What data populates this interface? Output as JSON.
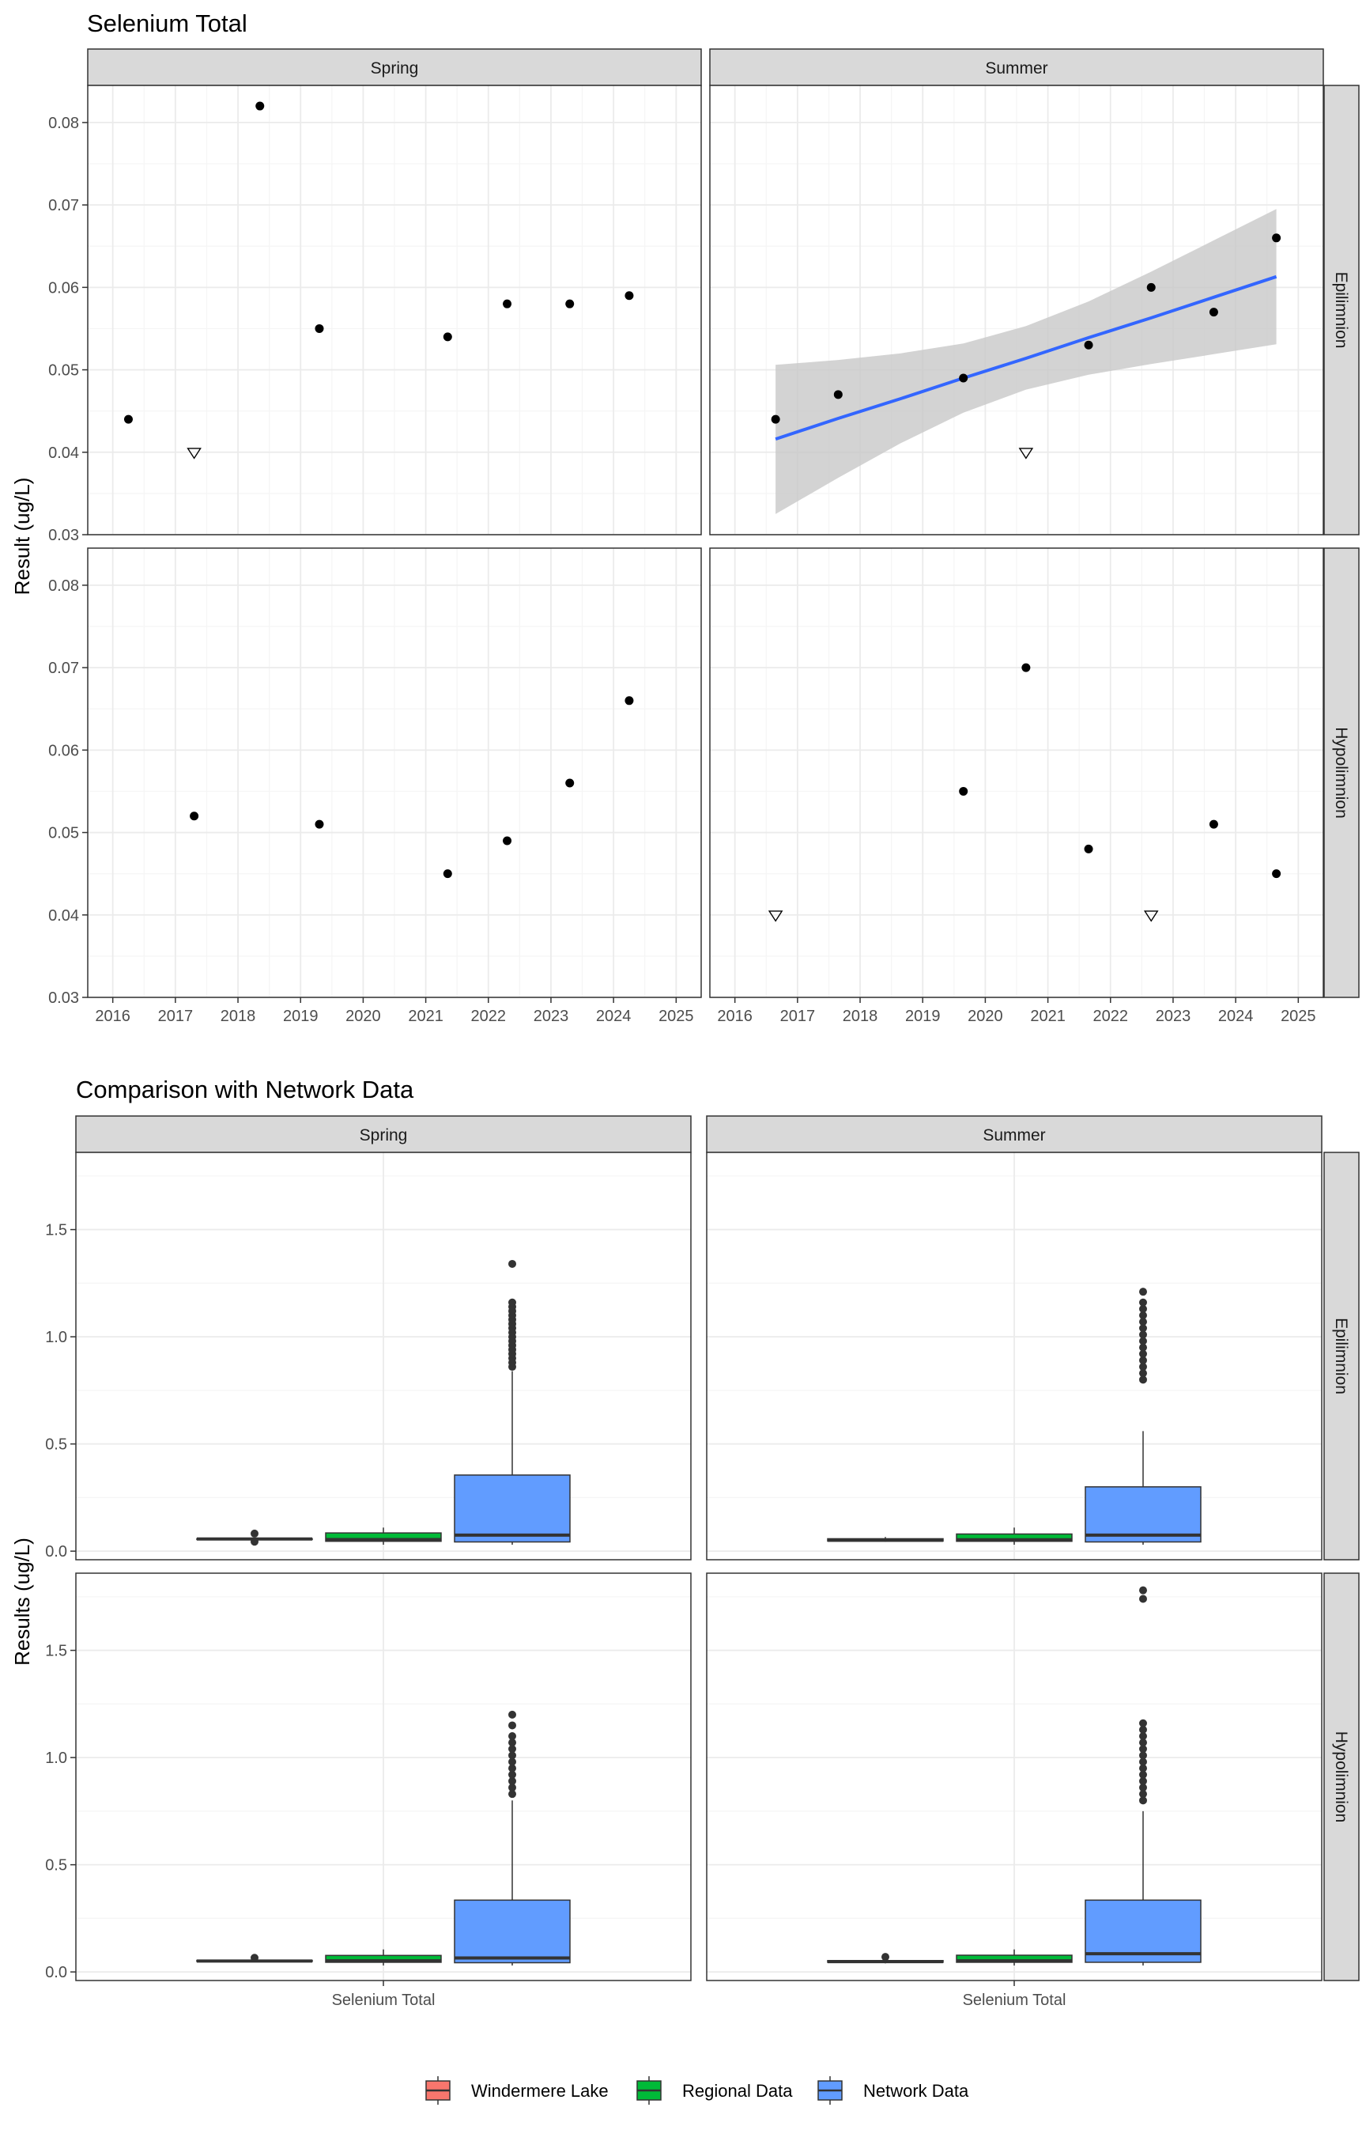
{
  "colors": {
    "panel_bg": "#ffffff",
    "grid_major": "#ebebeb",
    "grid_minor": "#f5f5f5",
    "strip_bg": "#d9d9d9",
    "border": "#333333",
    "point": "#000000",
    "trend": "#3366ff",
    "ribbon": "#c8c8c8",
    "windermere": "#f8766d",
    "regional": "#00ba38",
    "network": "#619cff"
  },
  "chart_data": [
    {
      "type": "scatter",
      "title": "Selenium Total",
      "ylabel": "Result (ug/L)",
      "xlabel": "",
      "xlim": [
        2015.6,
        2025.4
      ],
      "ylim": [
        0.03,
        0.0845
      ],
      "x_ticks": [
        2016,
        2017,
        2018,
        2019,
        2020,
        2021,
        2022,
        2023,
        2024,
        2025
      ],
      "y_ticks": [
        0.03,
        0.04,
        0.05,
        0.06,
        0.07,
        0.08
      ],
      "y_tick_labels": [
        "0.03",
        "0.04",
        "0.05",
        "0.06",
        "0.07",
        "0.08"
      ],
      "columns": [
        "Spring",
        "Summer"
      ],
      "rows": [
        "Epilimnion",
        "Hypolimnion"
      ],
      "grid": true,
      "panels": [
        {
          "season": "Spring",
          "layer": "Epilimnion",
          "points": [
            {
              "x": 2016.25,
              "y": 0.044,
              "nd": false
            },
            {
              "x": 2017.3,
              "y": 0.04,
              "nd": true
            },
            {
              "x": 2018.35,
              "y": 0.082,
              "nd": false
            },
            {
              "x": 2019.3,
              "y": 0.055,
              "nd": false
            },
            {
              "x": 2021.35,
              "y": 0.054,
              "nd": false
            },
            {
              "x": 2022.3,
              "y": 0.058,
              "nd": false
            },
            {
              "x": 2023.3,
              "y": 0.058,
              "nd": false
            },
            {
              "x": 2024.25,
              "y": 0.059,
              "nd": false
            }
          ]
        },
        {
          "season": "Summer",
          "layer": "Epilimnion",
          "points": [
            {
              "x": 2016.65,
              "y": 0.044,
              "nd": false
            },
            {
              "x": 2017.65,
              "y": 0.047,
              "nd": false
            },
            {
              "x": 2019.65,
              "y": 0.049,
              "nd": false
            },
            {
              "x": 2020.65,
              "y": 0.04,
              "nd": true
            },
            {
              "x": 2021.65,
              "y": 0.053,
              "nd": false
            },
            {
              "x": 2022.65,
              "y": 0.06,
              "nd": false
            },
            {
              "x": 2023.65,
              "y": 0.057,
              "nd": false
            },
            {
              "x": 2024.65,
              "y": 0.066,
              "nd": false
            }
          ],
          "trend": {
            "x": [
              2016.65,
              2017.65,
              2018.65,
              2019.65,
              2020.65,
              2021.65,
              2022.65,
              2023.65,
              2024.65
            ],
            "y": [
              0.0416,
              0.0441,
              0.0465,
              0.049,
              0.0514,
              0.0539,
              0.0563,
              0.0588,
              0.0613
            ],
            "lower": [
              0.0325,
              0.0369,
              0.0411,
              0.0448,
              0.0476,
              0.0494,
              0.0507,
              0.0519,
              0.0531
            ],
            "upper": [
              0.0506,
              0.0512,
              0.052,
              0.0532,
              0.0553,
              0.0583,
              0.0619,
              0.0657,
              0.0695
            ]
          }
        },
        {
          "season": "Spring",
          "layer": "Hypolimnion",
          "points": [
            {
              "x": 2017.3,
              "y": 0.052,
              "nd": false
            },
            {
              "x": 2019.3,
              "y": 0.051,
              "nd": false
            },
            {
              "x": 2021.35,
              "y": 0.045,
              "nd": false
            },
            {
              "x": 2022.3,
              "y": 0.049,
              "nd": false
            },
            {
              "x": 2023.3,
              "y": 0.056,
              "nd": false
            },
            {
              "x": 2024.25,
              "y": 0.066,
              "nd": false
            }
          ]
        },
        {
          "season": "Summer",
          "layer": "Hypolimnion",
          "points": [
            {
              "x": 2016.65,
              "y": 0.04,
              "nd": true
            },
            {
              "x": 2019.65,
              "y": 0.055,
              "nd": false
            },
            {
              "x": 2020.65,
              "y": 0.07,
              "nd": false
            },
            {
              "x": 2021.65,
              "y": 0.048,
              "nd": false
            },
            {
              "x": 2022.65,
              "y": 0.04,
              "nd": true
            },
            {
              "x": 2023.65,
              "y": 0.051,
              "nd": false
            },
            {
              "x": 2024.65,
              "y": 0.045,
              "nd": false
            }
          ]
        }
      ]
    },
    {
      "type": "box",
      "title": "Comparison with Network Data",
      "ylabel": "Results (ug/L)",
      "xlabel": "",
      "category": "Selenium Total",
      "ylim": [
        -0.04,
        1.86
      ],
      "y_ticks": [
        0.0,
        0.5,
        1.0,
        1.5
      ],
      "y_tick_labels": [
        "0.0",
        "0.5",
        "1.0",
        "1.5"
      ],
      "columns": [
        "Spring",
        "Summer"
      ],
      "rows": [
        "Epilimnion",
        "Hypolimnion"
      ],
      "grid": true,
      "legend": {
        "position": "bottom",
        "entries": [
          "Windermere Lake",
          "Regional Data",
          "Network Data"
        ]
      },
      "panels": [
        {
          "season": "Spring",
          "layer": "Epilimnion",
          "boxes": [
            {
              "group": "Windermere Lake",
              "min": 0.054,
              "q1": 0.055,
              "median": 0.057,
              "q3": 0.058,
              "max": 0.059,
              "outliers": [
                0.044,
                0.082
              ]
            },
            {
              "group": "Regional Data",
              "min": 0.03,
              "q1": 0.046,
              "median": 0.054,
              "q3": 0.085,
              "max": 0.11,
              "outliers": []
            },
            {
              "group": "Network Data",
              "min": 0.03,
              "q1": 0.043,
              "median": 0.075,
              "q3": 0.355,
              "max": 0.84,
              "outliers": [
                0.86,
                0.88,
                0.9,
                0.92,
                0.94,
                0.96,
                0.98,
                1.0,
                1.02,
                1.04,
                1.06,
                1.08,
                1.1,
                1.12,
                1.14,
                1.16,
                1.34
              ]
            }
          ]
        },
        {
          "season": "Summer",
          "layer": "Epilimnion",
          "boxes": [
            {
              "group": "Windermere Lake",
              "min": 0.044,
              "q1": 0.047,
              "median": 0.051,
              "q3": 0.058,
              "max": 0.066,
              "outliers": []
            },
            {
              "group": "Regional Data",
              "min": 0.03,
              "q1": 0.046,
              "median": 0.053,
              "q3": 0.08,
              "max": 0.11,
              "outliers": []
            },
            {
              "group": "Network Data",
              "min": 0.03,
              "q1": 0.043,
              "median": 0.075,
              "q3": 0.3,
              "max": 0.56,
              "outliers": [
                0.8,
                0.83,
                0.86,
                0.89,
                0.92,
                0.95,
                0.98,
                1.01,
                1.04,
                1.07,
                1.1,
                1.13,
                1.16,
                1.21
              ]
            }
          ]
        },
        {
          "season": "Spring",
          "layer": "Hypolimnion",
          "boxes": [
            {
              "group": "Windermere Lake",
              "min": 0.045,
              "q1": 0.049,
              "median": 0.051,
              "q3": 0.054,
              "max": 0.056,
              "outliers": [
                0.066
              ]
            },
            {
              "group": "Regional Data",
              "min": 0.03,
              "q1": 0.045,
              "median": 0.052,
              "q3": 0.077,
              "max": 0.105,
              "outliers": []
            },
            {
              "group": "Network Data",
              "min": 0.03,
              "q1": 0.043,
              "median": 0.065,
              "q3": 0.335,
              "max": 0.8,
              "outliers": [
                0.83,
                0.86,
                0.89,
                0.92,
                0.95,
                0.98,
                1.01,
                1.04,
                1.07,
                1.1,
                1.15,
                1.2
              ]
            }
          ]
        },
        {
          "season": "Summer",
          "layer": "Hypolimnion",
          "boxes": [
            {
              "group": "Windermere Lake",
              "min": 0.04,
              "q1": 0.045,
              "median": 0.048,
              "q3": 0.053,
              "max": 0.055,
              "outliers": [
                0.07
              ]
            },
            {
              "group": "Regional Data",
              "min": 0.03,
              "q1": 0.045,
              "median": 0.052,
              "q3": 0.078,
              "max": 0.105,
              "outliers": []
            },
            {
              "group": "Network Data",
              "min": 0.03,
              "q1": 0.045,
              "median": 0.085,
              "q3": 0.335,
              "max": 0.75,
              "outliers": [
                0.8,
                0.83,
                0.86,
                0.89,
                0.92,
                0.95,
                0.98,
                1.01,
                1.04,
                1.07,
                1.1,
                1.13,
                1.16,
                1.74,
                1.78
              ]
            }
          ]
        }
      ]
    }
  ]
}
